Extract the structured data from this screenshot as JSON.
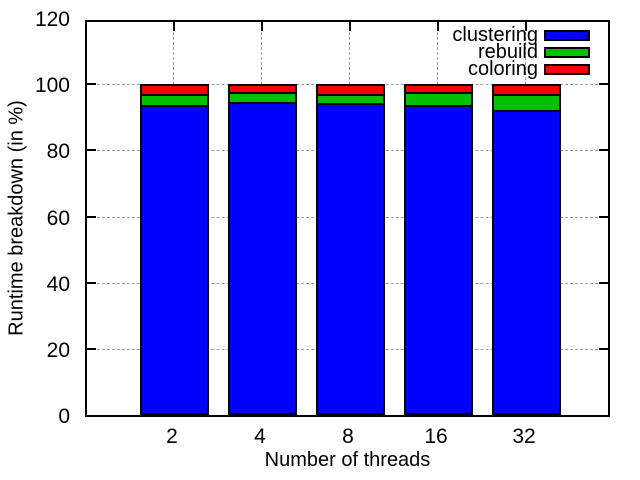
{
  "chart_data": {
    "type": "bar",
    "stacked": true,
    "title": "",
    "xlabel": "Number of threads",
    "ylabel": "Runtime breakdown (in %)",
    "categories": [
      "2",
      "4",
      "8",
      "16",
      "32"
    ],
    "series": [
      {
        "name": "clustering",
        "color": "#0000ff",
        "values": [
          92.5,
          93.5,
          93.0,
          92.5,
          91.0
        ]
      },
      {
        "name": "rebuild",
        "color": "#00c000",
        "values": [
          4.0,
          3.5,
          3.5,
          4.5,
          5.5
        ]
      },
      {
        "name": "coloring",
        "color": "#ff0000",
        "values": [
          3.5,
          3.0,
          3.5,
          3.0,
          3.5
        ]
      }
    ],
    "ylim": [
      0,
      120
    ],
    "yticks": [
      0,
      20,
      40,
      60,
      80,
      100,
      120
    ],
    "grid": true,
    "legend": {
      "position": "top-right",
      "entries": [
        "clustering",
        "rebuild",
        "coloring"
      ]
    }
  },
  "colors": {
    "background": "#ffffff",
    "axis": "#000000",
    "grid": "#a0a0a0",
    "bar_border": "#000000",
    "clustering": "#0000ff",
    "rebuild": "#00c000",
    "coloring": "#ff0000"
  }
}
